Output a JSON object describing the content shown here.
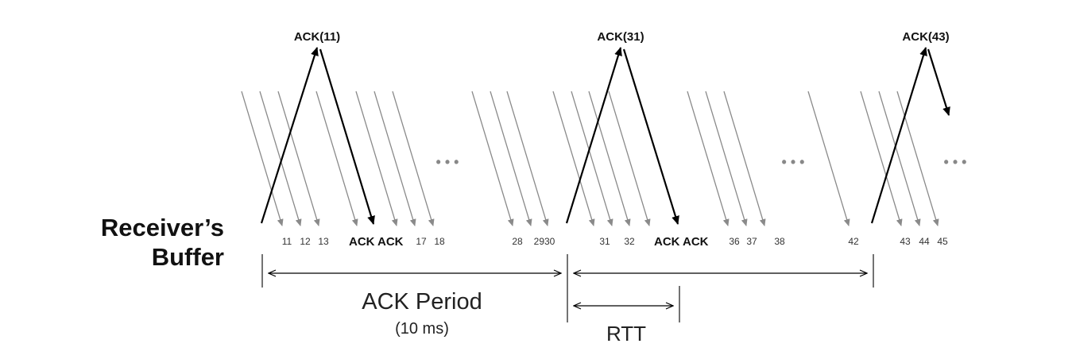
{
  "buffer_label": [
    "Receiver’s",
    "Buffer"
  ],
  "ack_labels": [
    "ACK(11)",
    "ACK(31)",
    "ACK(43)"
  ],
  "seq_labels": [
    "11",
    "12",
    "13",
    "17",
    "18",
    "28",
    "2930",
    "31",
    "32",
    "36",
    "37",
    "38",
    "42",
    "43",
    "44",
    "45"
  ],
  "ack_marks": [
    "ACK",
    "ACK",
    "ACK",
    "ACK"
  ],
  "ellipsis": "• • •",
  "period_label": "ACK Period",
  "period_sub": "(10 ms)",
  "rtt_label": "RTT",
  "colors": {
    "packet": "#8a8a8a",
    "ack": "#000000",
    "text": "#111111"
  }
}
